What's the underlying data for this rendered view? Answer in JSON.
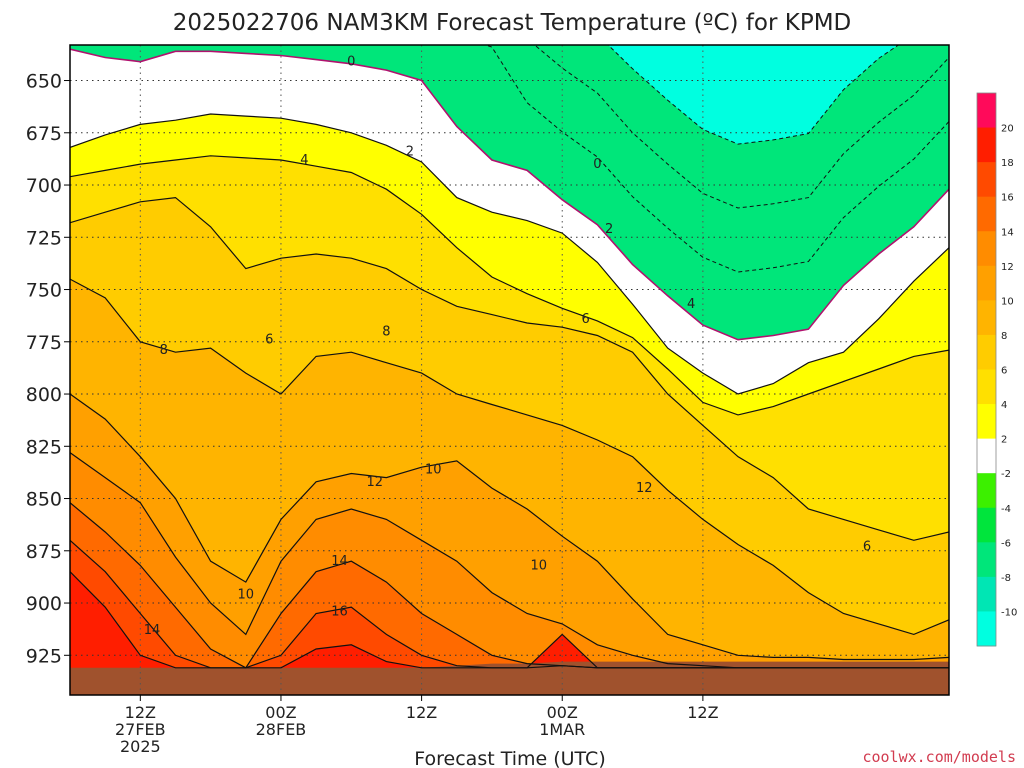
{
  "chart_data": {
    "type": "heatmap",
    "title": "2025022706 NAM3KM Forecast Temperature (ºC) for KPMD",
    "xlabel": "Forecast Time (UTC)",
    "ylabel": "",
    "credit": "coolwx.com/models",
    "y_axis": {
      "scale": "linear",
      "reversed": true,
      "range_hpa": [
        633,
        944
      ],
      "ticks": [
        650,
        675,
        700,
        725,
        750,
        775,
        800,
        825,
        850,
        875,
        900,
        925
      ]
    },
    "x_axis": {
      "range_hours_from_init": [
        0,
        75
      ],
      "ticks": [
        {
          "hour": 6,
          "label": "12Z",
          "line2": "27FEB",
          "line3": "2025"
        },
        {
          "hour": 18,
          "label": "00Z",
          "line2": "28FEB",
          "line3": ""
        },
        {
          "hour": 30,
          "label": "12Z",
          "line2": "",
          "line3": ""
        },
        {
          "hour": 42,
          "label": "00Z",
          "line2": "1MAR",
          "line3": ""
        },
        {
          "hour": 54,
          "label": "12Z",
          "line2": "",
          "line3": ""
        }
      ]
    },
    "grid": true,
    "colorbar": {
      "position": "right",
      "labels": [
        20,
        18,
        16,
        14,
        12,
        10,
        8,
        6,
        4,
        2,
        -2,
        -4,
        -6,
        -8,
        -10
      ],
      "bins": [
        {
          "from": 20,
          "to": 22,
          "color": "#ff0a5a"
        },
        {
          "from": 18,
          "to": 20,
          "color": "#ff1e00"
        },
        {
          "from": 16,
          "to": 18,
          "color": "#ff4a00"
        },
        {
          "from": 14,
          "to": 16,
          "color": "#ff6a00"
        },
        {
          "from": 12,
          "to": 14,
          "color": "#ff8c00"
        },
        {
          "from": 10,
          "to": 12,
          "color": "#ffa000"
        },
        {
          "from": 8,
          "to": 10,
          "color": "#ffb400"
        },
        {
          "from": 6,
          "to": 8,
          "color": "#ffcc00"
        },
        {
          "from": 4,
          "to": 6,
          "color": "#ffe000"
        },
        {
          "from": 2,
          "to": 4,
          "color": "#ffff00"
        },
        {
          "from": -2,
          "to": 2,
          "color": "#ffffff"
        },
        {
          "from": -4,
          "to": -2,
          "color": "#3cf000"
        },
        {
          "from": -6,
          "to": -4,
          "color": "#00e53c"
        },
        {
          "from": -8,
          "to": -6,
          "color": "#00e67a"
        },
        {
          "from": -10,
          "to": -8,
          "color": "#00e6b4"
        },
        {
          "from": -12,
          "to": -10,
          "color": "#00ffe0"
        }
      ]
    },
    "terrain_color": "#a0522d",
    "zero_line_color": "#b0126e",
    "x_hours": [
      0,
      3,
      6,
      9,
      12,
      15,
      18,
      21,
      24,
      27,
      30,
      33,
      36,
      39,
      42,
      45,
      48,
      51,
      54,
      57,
      60,
      63,
      66,
      69,
      72,
      75
    ],
    "isotherms": [
      {
        "value": 0,
        "pressures": [
          635,
          639,
          641,
          636,
          636,
          637,
          638,
          640,
          642,
          645,
          650,
          672,
          688,
          693,
          707,
          719,
          738,
          753,
          767,
          774,
          772,
          769,
          748,
          733,
          720,
          702
        ]
      },
      {
        "value": 2,
        "pressures": [
          682,
          676,
          671,
          669,
          666,
          667,
          668,
          671,
          675,
          681,
          689,
          706,
          713,
          717,
          723,
          737,
          757,
          778,
          790,
          800,
          795,
          785,
          780,
          764,
          746,
          730
        ]
      },
      {
        "value": 4,
        "pressures": [
          696,
          693,
          690,
          688,
          686,
          687,
          688,
          691,
          694,
          702,
          714,
          730,
          744,
          752,
          759,
          765,
          773,
          788,
          804,
          810,
          806,
          800,
          794,
          788,
          782,
          779
        ]
      },
      {
        "value": 6,
        "pressures": [
          718,
          713,
          708,
          706,
          720,
          740,
          735,
          733,
          735,
          740,
          750,
          758,
          762,
          766,
          768,
          772,
          780,
          800,
          815,
          830,
          840,
          855,
          860,
          865,
          870,
          866
        ]
      },
      {
        "value": 8,
        "pressures": [
          745,
          754,
          775,
          780,
          778,
          790,
          800,
          782,
          780,
          785,
          790,
          800,
          805,
          810,
          815,
          822,
          830,
          846,
          860,
          872,
          882,
          895,
          905,
          910,
          915,
          908
        ]
      },
      {
        "value": 10,
        "pressures": [
          800,
          812,
          830,
          850,
          880,
          890,
          860,
          842,
          838,
          840,
          835,
          832,
          845,
          855,
          868,
          880,
          898,
          915,
          920,
          925,
          926,
          926,
          927,
          927,
          927,
          926
        ]
      },
      {
        "value": 12,
        "pressures": [
          828,
          840,
          852,
          878,
          900,
          915,
          880,
          860,
          855,
          860,
          870,
          880,
          895,
          905,
          910,
          920,
          925,
          929,
          930,
          931,
          931,
          931,
          931,
          931,
          931,
          931
        ]
      },
      {
        "value": 14,
        "pressures": [
          852,
          866,
          882,
          902,
          922,
          931,
          905,
          885,
          880,
          890,
          905,
          915,
          925,
          929,
          930,
          931,
          931,
          931,
          931,
          931,
          931,
          931,
          931,
          931,
          931,
          931
        ]
      },
      {
        "value": 16,
        "pressures": [
          870,
          885,
          905,
          925,
          931,
          931,
          925,
          905,
          902,
          915,
          925,
          930,
          931,
          931,
          930,
          931,
          931,
          931,
          931,
          931,
          931,
          931,
          931,
          931,
          931,
          931
        ]
      },
      {
        "value": 18,
        "pressures": [
          885,
          902,
          925,
          931,
          931,
          931,
          931,
          922,
          920,
          928,
          931,
          931,
          931,
          931,
          915,
          931,
          931,
          931,
          931,
          931,
          931,
          931,
          931,
          931,
          931,
          931
        ]
      }
    ],
    "terrain_top": [
      931,
      931,
      931,
      931,
      931,
      931,
      931,
      931,
      931,
      931,
      931,
      930,
      929,
      929,
      928,
      928,
      928,
      928,
      928,
      928,
      928,
      928,
      928,
      928,
      928,
      928
    ],
    "contour_labels": [
      {
        "text": "0",
        "hour": 24,
        "p": 641
      },
      {
        "text": "0",
        "hour": 45,
        "p": 690
      },
      {
        "text": "2",
        "hour": 29,
        "p": 684
      },
      {
        "text": "2",
        "hour": 46,
        "p": 721
      },
      {
        "text": "4",
        "hour": 20,
        "p": 688
      },
      {
        "text": "4",
        "hour": 53,
        "p": 757
      },
      {
        "text": "6",
        "hour": 17,
        "p": 774
      },
      {
        "text": "6",
        "hour": 44,
        "p": 764
      },
      {
        "text": "6",
        "hour": 68,
        "p": 873
      },
      {
        "text": "8",
        "hour": 8,
        "p": 779
      },
      {
        "text": "8",
        "hour": 27,
        "p": 770
      },
      {
        "text": "10",
        "hour": 15,
        "p": 896
      },
      {
        "text": "10",
        "hour": 31,
        "p": 836
      },
      {
        "text": "10",
        "hour": 40,
        "p": 882
      },
      {
        "text": "12",
        "hour": 26,
        "p": 842
      },
      {
        "text": "12",
        "hour": 49,
        "p": 845
      },
      {
        "text": "14",
        "hour": 7,
        "p": 913
      },
      {
        "text": "14",
        "hour": 23,
        "p": 880
      },
      {
        "text": "16",
        "hour": 23,
        "p": 904
      }
    ]
  }
}
